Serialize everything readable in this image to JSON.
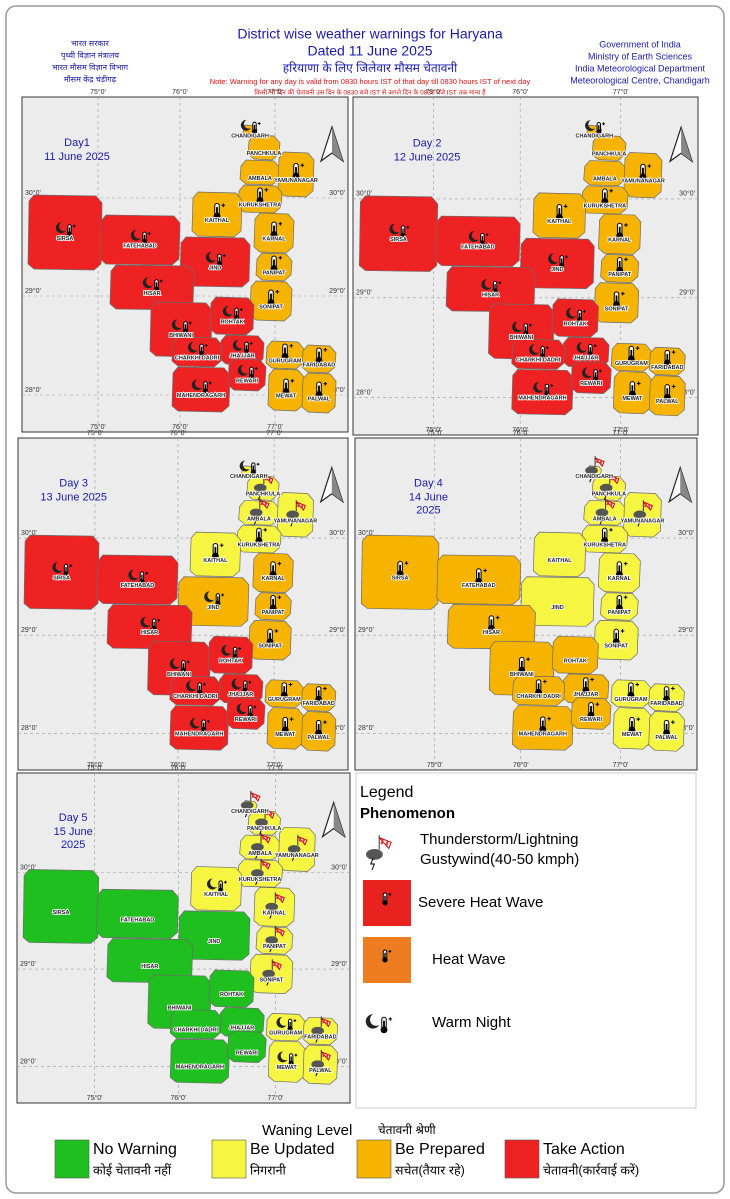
{
  "header": {
    "left": [
      "भारत सरकार",
      "पृथ्वी विज्ञान मंत्रालय",
      "भारत मौसम विज्ञान विभाग",
      "मौसम केंद्र चंडीगढ़"
    ],
    "title": "District wise weather warnings for Haryana",
    "date": "Dated 11 June 2025",
    "title_hi": "हरियाणा के लिए जिलेवार मौसम चेतावनी",
    "note": "Note: Warning for any day is valid from 0830 hours IST of that day till 0830 hours IST of next day",
    "note_hi": "किसी भी दिन की चेतावनी उस दिन के 0830 बजे IST से अगले दिन के 0830 बजे IST तक मान्य है",
    "right": [
      "Government of India",
      "Ministry of Earth Sciences",
      "India Meteorological Department",
      "Meteorological Centre, Chandigarh"
    ]
  },
  "grid": {
    "lon": [
      "75°0'",
      "76°0'",
      "77°0'"
    ],
    "lat": [
      "30°0'",
      "29°0'",
      "28°0'"
    ]
  },
  "districts": [
    "CHANDIGARH",
    "PANCHKULA",
    "AMBALA",
    "YAMUNANAGAR",
    "KURUKSHETRA",
    "KAITHAL",
    "KARNAL",
    "JIND",
    "PANIPAT",
    "SONIPAT",
    "SIRSA",
    "FATEHABAD",
    "HISAR",
    "BHIWANI",
    "ROHTAK",
    "JHAJJAR",
    "CHARKHI DADRI",
    "MAHENDRAGARH",
    "REWARI",
    "GURUGRAM",
    "FARIDABAD",
    "MEWAT",
    "PALWAL"
  ],
  "panels": [
    {
      "day": "Day1",
      "date": [
        "11 June 2025"
      ],
      "levels": [
        2,
        2,
        2,
        2,
        2,
        2,
        2,
        3,
        2,
        2,
        3,
        3,
        3,
        3,
        3,
        3,
        3,
        3,
        3,
        2,
        2,
        2,
        2
      ],
      "icons": {
        "heat": [
          3,
          4,
          5,
          6,
          8,
          9,
          19,
          20,
          21,
          22
        ],
        "night": [
          0,
          10,
          11,
          12,
          7,
          13,
          14,
          15,
          16,
          17,
          18
        ],
        "thunder": []
      }
    },
    {
      "day": "Day 2",
      "date": [
        "12 June 2025"
      ],
      "levels": [
        2,
        2,
        2,
        2,
        2,
        2,
        2,
        3,
        2,
        2,
        3,
        3,
        3,
        3,
        3,
        3,
        3,
        3,
        3,
        2,
        2,
        2,
        2
      ],
      "icons": {
        "heat": [
          3,
          4,
          5,
          6,
          8,
          9,
          19,
          20,
          21,
          22
        ],
        "night": [
          0,
          10,
          11,
          12,
          7,
          13,
          14,
          15,
          16,
          17,
          18
        ],
        "thunder": []
      }
    },
    {
      "day": "Day 3",
      "date": [
        "13 June 2025"
      ],
      "levels": [
        1,
        1,
        1,
        1,
        1,
        1,
        2,
        2,
        2,
        2,
        3,
        3,
        3,
        3,
        3,
        3,
        3,
        3,
        3,
        2,
        2,
        2,
        2
      ],
      "icons": {
        "heat": [
          4,
          5,
          6,
          8,
          9,
          19,
          20,
          21,
          22
        ],
        "night": [
          0,
          10,
          11,
          12,
          7,
          13,
          14,
          15,
          16,
          17,
          18
        ],
        "thunder": [
          1,
          2,
          3
        ]
      }
    },
    {
      "day": "Day 4",
      "date": [
        "14 June",
        "2025"
      ],
      "levels": [
        1,
        1,
        1,
        1,
        1,
        1,
        1,
        1,
        1,
        1,
        2,
        2,
        2,
        2,
        2,
        2,
        2,
        2,
        2,
        1,
        1,
        1,
        1
      ],
      "icons": {
        "heat": [
          10,
          11,
          12,
          13,
          15,
          16,
          17,
          18,
          4,
          6,
          8,
          9,
          19,
          20,
          21,
          22
        ],
        "night": [],
        "thunder": [
          0,
          1,
          2,
          3
        ]
      }
    },
    {
      "day": "Day 5",
      "date": [
        "15 June",
        "2025"
      ],
      "levels": [
        1,
        1,
        1,
        1,
        1,
        1,
        1,
        0,
        1,
        1,
        0,
        0,
        0,
        0,
        0,
        0,
        0,
        0,
        0,
        1,
        1,
        1,
        1
      ],
      "icons": {
        "heat": [],
        "night": [
          5,
          19,
          21
        ],
        "thunder": [
          0,
          1,
          2,
          3,
          4,
          6,
          8,
          9,
          20,
          22
        ]
      }
    }
  ],
  "legend": {
    "title": "Legend",
    "subtitle": "Phenomenon",
    "items": [
      {
        "icon": "thunder",
        "label": [
          "Thunderstorm/Lightning",
          " Gustywind(40-50 kmph)"
        ]
      },
      {
        "icon": "box",
        "color": "#e8231f",
        "label": [
          "Severe Heat Wave"
        ]
      },
      {
        "icon": "box",
        "color": "#ee7d22",
        "label": [
          "Heat Wave"
        ]
      },
      {
        "icon": "night",
        "label": [
          "Warm Night"
        ]
      }
    ]
  },
  "warning_levels": {
    "title": "Waning Level",
    "title_hi": "चेतावनी श्रेणी",
    "levels": [
      {
        "label": "No Warning",
        "label_hi": "कोई चेतावनी नहीं",
        "color": "#1fbf1f"
      },
      {
        "label": "Be Updated",
        "label_hi": "निगरानी",
        "color": "#f5f542"
      },
      {
        "label": "Be Prepared",
        "label_hi": "सचेत(तैयार रहे)",
        "color": "#f6b400"
      },
      {
        "label": "Take Action",
        "label_hi": "चेतावनी(कार्रवाई करें)",
        "color": "#ee2222"
      }
    ]
  }
}
